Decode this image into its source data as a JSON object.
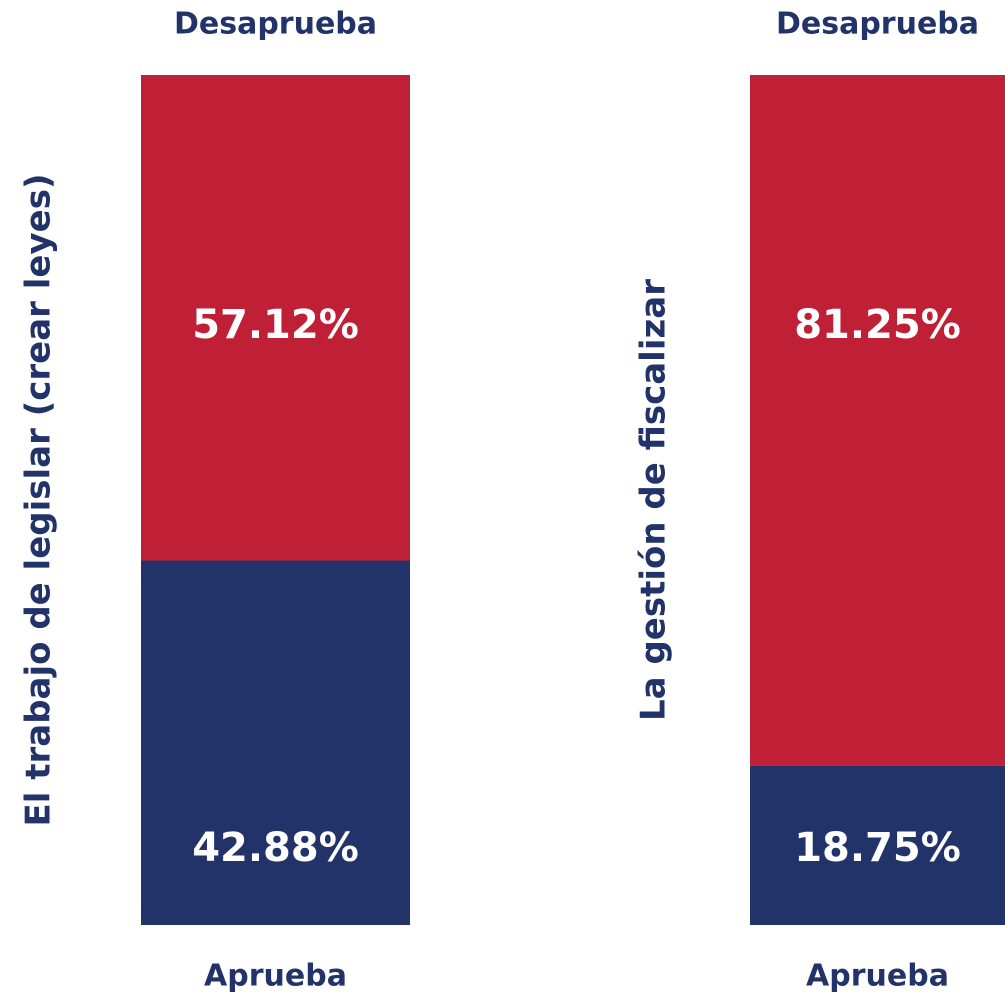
{
  "chart_data": [
    {
      "type": "bar",
      "stacked": true,
      "ylabel": "El trabajo de legislar (crear leyes)",
      "ylim": [
        0,
        100
      ],
      "series": [
        {
          "name": "Aprueba",
          "color": "#22336a",
          "values": [
            42.88
          ],
          "value_labels": [
            "42.88%"
          ]
        },
        {
          "name": "Desaprueba",
          "color": "#c02035",
          "values": [
            57.12
          ],
          "value_labels": [
            "57.12%"
          ]
        }
      ]
    },
    {
      "type": "bar",
      "stacked": true,
      "ylabel": "La gestión de fiscalizar",
      "ylim": [
        0,
        100
      ],
      "series": [
        {
          "name": "Aprueba",
          "color": "#22336a",
          "values": [
            18.75
          ],
          "value_labels": [
            "18.75%"
          ]
        },
        {
          "name": "Desaprueba",
          "color": "#c02035",
          "values": [
            81.25
          ],
          "value_labels": [
            "81.25%"
          ]
        }
      ]
    }
  ]
}
